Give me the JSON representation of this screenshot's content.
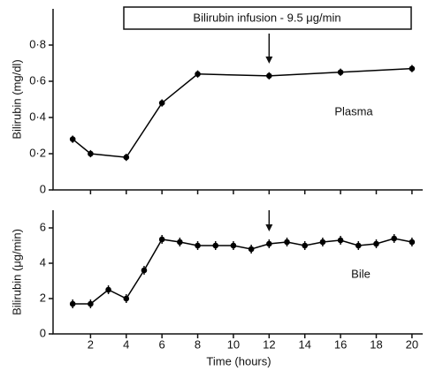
{
  "chart_data": [
    {
      "type": "line",
      "ylabel": "Bilirubin (mg/dl)",
      "annotation": "Bilirubin infusion - 9.5 μg/min",
      "arrow_x": 12,
      "series_label": "Plasma",
      "x": [
        1,
        2,
        4,
        6,
        8,
        12,
        16,
        20
      ],
      "series": [
        {
          "name": "Plasma",
          "color": "#000000",
          "values": [
            0.28,
            0.2,
            0.18,
            0.48,
            0.64,
            0.63,
            0.65,
            0.67
          ],
          "errors": [
            0.02,
            0.02,
            0.02,
            0.02,
            0.02,
            0.02,
            0.02,
            0.02
          ]
        }
      ],
      "xlim": [
        0,
        20.6
      ],
      "xticks": [
        2,
        4,
        6,
        8,
        10,
        12,
        14,
        16,
        18,
        20
      ],
      "ylim": [
        0,
        1.0
      ],
      "yticks": [
        0,
        {
          "value": 0.2,
          "label": "0·2"
        },
        {
          "value": 0.4,
          "label": "0·4"
        },
        {
          "value": 0.6,
          "label": "0·6"
        },
        {
          "value": 0.8,
          "label": "0·8"
        }
      ]
    },
    {
      "type": "line",
      "ylabel": "Bilirubin (μg/min)",
      "xlabel": "Time (hours)",
      "arrow_x": 12,
      "series_label": "Bile",
      "x": [
        1,
        2,
        3,
        4,
        5,
        6,
        7,
        8,
        9,
        10,
        11,
        12,
        13,
        14,
        15,
        16,
        17,
        18,
        19,
        20
      ],
      "series": [
        {
          "name": "Bile",
          "color": "#000000",
          "values": [
            1.7,
            1.7,
            2.5,
            2.0,
            3.6,
            5.35,
            5.2,
            5.0,
            5.0,
            5.0,
            4.8,
            5.1,
            5.2,
            5.0,
            5.2,
            5.3,
            5.0,
            5.1,
            5.4,
            5.2
          ],
          "errors": [
            0.25,
            0.25,
            0.25,
            0.25,
            0.25,
            0.25,
            0.25,
            0.25,
            0.25,
            0.25,
            0.25,
            0.25,
            0.25,
            0.25,
            0.25,
            0.25,
            0.25,
            0.25,
            0.25,
            0.25
          ]
        }
      ],
      "xlim": [
        0,
        20.6
      ],
      "xticks": [
        2,
        4,
        6,
        8,
        10,
        12,
        14,
        16,
        18,
        20
      ],
      "ylim": [
        0,
        7
      ],
      "yticks": [
        0,
        2,
        4,
        6
      ]
    }
  ]
}
